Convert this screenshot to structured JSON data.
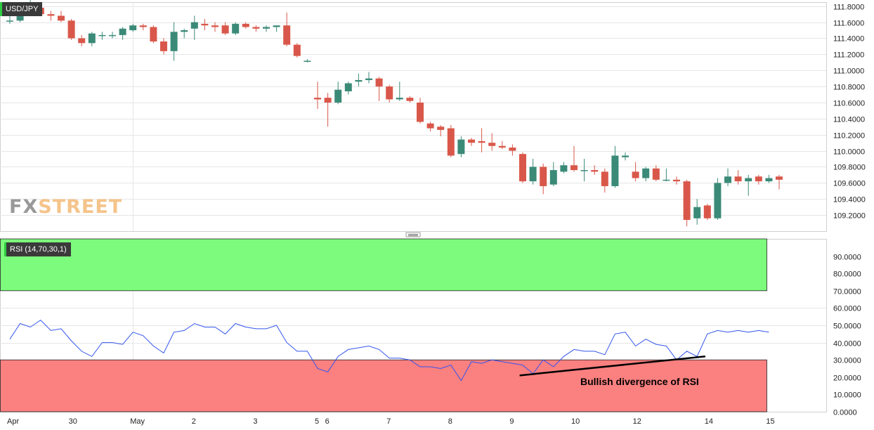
{
  "symbol": "USD/JPY",
  "indicator_label": "RSI (14,70,30,1)",
  "watermark": {
    "part1": "FX",
    "part2": "STREET"
  },
  "annotation": "Bullish divergence of RSI",
  "colors": {
    "up": "#3b8a78",
    "down": "#d9574a",
    "rsi_line": "#3355ee",
    "overbought_zone": "#7dfb7d",
    "oversold_zone": "#fb8080",
    "grid": "#e6e6e6",
    "watermark_fx": "#999999",
    "watermark_street": "#f5c48a",
    "badge_accent": "#2ecc40"
  },
  "chart_data": [
    {
      "type": "candlestick",
      "title": "USD/JPY",
      "y_ticks": [
        "111.8000",
        "111.6000",
        "111.4000",
        "111.2000",
        "111.0000",
        "110.8000",
        "110.6000",
        "110.4000",
        "110.2000",
        "110.0000",
        "109.8000",
        "109.6000",
        "109.4000",
        "109.2000"
      ],
      "ylim": [
        109.0,
        111.85
      ],
      "x_ticks": [
        {
          "label": "Apr",
          "index": 0
        },
        {
          "label": "30",
          "index": 6
        },
        {
          "label": "May",
          "index": 12
        },
        {
          "label": "2",
          "index": 18
        },
        {
          "label": "3",
          "index": 24
        },
        {
          "label": "5",
          "index": 30
        },
        {
          "label": "6",
          "index": 31
        },
        {
          "label": "7",
          "index": 37
        },
        {
          "label": "8",
          "index": 43
        },
        {
          "label": "9",
          "index": 49
        },
        {
          "label": "10",
          "index": 55
        },
        {
          "label": "12",
          "index": 61
        },
        {
          "label": "14",
          "index": 68
        },
        {
          "label": "15",
          "index": 74
        }
      ],
      "candles": [
        [
          111.62,
          111.7,
          111.58,
          111.62
        ],
        [
          111.62,
          111.82,
          111.6,
          111.76
        ],
        [
          111.76,
          111.88,
          111.7,
          111.78
        ],
        [
          111.78,
          111.85,
          111.68,
          111.7
        ],
        [
          111.7,
          111.74,
          111.62,
          111.68
        ],
        [
          111.68,
          111.74,
          111.6,
          111.62
        ],
        [
          111.62,
          111.64,
          111.38,
          111.4
        ],
        [
          111.4,
          111.44,
          111.3,
          111.34
        ],
        [
          111.34,
          111.48,
          111.3,
          111.46
        ],
        [
          111.44,
          111.48,
          111.38,
          111.44
        ],
        [
          111.44,
          111.48,
          111.4,
          111.44
        ],
        [
          111.44,
          111.54,
          111.38,
          111.52
        ],
        [
          111.5,
          111.58,
          111.48,
          111.56
        ],
        [
          111.56,
          111.58,
          111.5,
          111.54
        ],
        [
          111.54,
          111.56,
          111.34,
          111.36
        ],
        [
          111.36,
          111.4,
          111.2,
          111.24
        ],
        [
          111.24,
          111.6,
          111.12,
          111.48
        ],
        [
          111.48,
          111.52,
          111.4,
          111.5
        ],
        [
          111.52,
          111.68,
          111.38,
          111.6
        ],
        [
          111.58,
          111.64,
          111.5,
          111.56
        ],
        [
          111.56,
          111.6,
          111.48,
          111.54
        ],
        [
          111.56,
          111.6,
          111.44,
          111.46
        ],
        [
          111.46,
          111.6,
          111.44,
          111.58
        ],
        [
          111.58,
          111.6,
          111.52,
          111.54
        ],
        [
          111.54,
          111.56,
          111.48,
          111.52
        ],
        [
          111.52,
          111.56,
          111.48,
          111.54
        ],
        [
          111.54,
          111.56,
          111.48,
          111.56
        ],
        [
          111.56,
          111.72,
          111.3,
          111.32
        ],
        [
          111.32,
          111.34,
          111.16,
          111.18
        ],
        [
          111.12,
          111.14,
          111.1,
          111.12
        ],
        [
          110.66,
          110.86,
          110.52,
          110.64
        ],
        [
          110.66,
          110.72,
          110.3,
          110.6
        ],
        [
          110.6,
          110.86,
          110.58,
          110.76
        ],
        [
          110.74,
          110.86,
          110.7,
          110.84
        ],
        [
          110.86,
          110.96,
          110.8,
          110.88
        ],
        [
          110.88,
          110.98,
          110.84,
          110.9
        ],
        [
          110.9,
          110.92,
          110.62,
          110.8
        ],
        [
          110.8,
          110.82,
          110.6,
          110.64
        ],
        [
          110.64,
          110.86,
          110.62,
          110.66
        ],
        [
          110.66,
          110.68,
          110.6,
          110.62
        ],
        [
          110.6,
          110.66,
          110.34,
          110.36
        ],
        [
          110.34,
          110.36,
          110.24,
          110.28
        ],
        [
          110.3,
          110.32,
          110.18,
          110.26
        ],
        [
          110.28,
          110.32,
          109.92,
          109.94
        ],
        [
          109.96,
          110.18,
          109.92,
          110.14
        ],
        [
          110.14,
          110.16,
          110.06,
          110.1
        ],
        [
          110.12,
          110.28,
          109.98,
          110.1
        ],
        [
          110.1,
          110.22,
          110.0,
          110.06
        ],
        [
          110.06,
          110.12,
          110.02,
          110.04
        ],
        [
          110.04,
          110.08,
          109.94,
          110.0
        ],
        [
          109.96,
          109.98,
          109.6,
          109.62
        ],
        [
          109.62,
          109.9,
          109.58,
          109.8
        ],
        [
          109.8,
          109.84,
          109.46,
          109.56
        ],
        [
          109.58,
          109.86,
          109.56,
          109.76
        ],
        [
          109.74,
          109.86,
          109.72,
          109.82
        ],
        [
          109.82,
          110.06,
          109.74,
          109.76
        ],
        [
          109.76,
          109.9,
          109.62,
          109.76
        ],
        [
          109.76,
          109.82,
          109.7,
          109.74
        ],
        [
          109.74,
          109.78,
          109.48,
          109.56
        ],
        [
          109.56,
          110.06,
          109.54,
          109.94
        ],
        [
          109.92,
          109.98,
          109.88,
          109.94
        ],
        [
          109.74,
          109.86,
          109.62,
          109.66
        ],
        [
          109.66,
          109.8,
          109.62,
          109.78
        ],
        [
          109.78,
          109.82,
          109.62,
          109.64
        ],
        [
          109.64,
          109.78,
          109.62,
          109.64
        ],
        [
          109.64,
          109.68,
          109.58,
          109.62
        ],
        [
          109.62,
          109.64,
          109.06,
          109.14
        ],
        [
          109.16,
          109.4,
          109.08,
          109.3
        ],
        [
          109.32,
          109.34,
          109.14,
          109.16
        ],
        [
          109.16,
          109.66,
          109.14,
          109.6
        ],
        [
          109.6,
          109.78,
          109.56,
          109.68
        ],
        [
          109.68,
          109.76,
          109.58,
          109.62
        ],
        [
          109.62,
          109.7,
          109.44,
          109.66
        ],
        [
          109.68,
          109.7,
          109.58,
          109.62
        ],
        [
          109.62,
          109.7,
          109.6,
          109.66
        ],
        [
          109.68,
          109.7,
          109.52,
          109.64
        ]
      ]
    },
    {
      "type": "line",
      "title": "RSI (14,70,30,1)",
      "y_ticks": [
        "90.0000",
        "80.0000",
        "70.0000",
        "60.0000",
        "50.0000",
        "40.0000",
        "30.0000",
        "20.0000",
        "10.0000",
        "0.0000"
      ],
      "ylim": [
        0,
        100
      ],
      "bands": [
        {
          "from": 70,
          "to": 100
        },
        {
          "from": 0,
          "to": 30
        }
      ],
      "series": [
        {
          "values": [
            42,
            51,
            49,
            53,
            47,
            48,
            41,
            35,
            32,
            40,
            40,
            39,
            46,
            44,
            38,
            34,
            46,
            47,
            51,
            49,
            49,
            45,
            51,
            49,
            48,
            48,
            50,
            40,
            35,
            35,
            25,
            23,
            32,
            36,
            37,
            38,
            36,
            31,
            31,
            30,
            26,
            26,
            25,
            27,
            18,
            29,
            28,
            30,
            29,
            28,
            27,
            22,
            30,
            26,
            32,
            36,
            35,
            35,
            33,
            45,
            46,
            38,
            42,
            39,
            38,
            30,
            35,
            32,
            45,
            47,
            46,
            47,
            46,
            47,
            46
          ]
        }
      ],
      "trendline": {
        "from": {
          "index": 49.7,
          "value": 21
        },
        "to": {
          "index": 67.8,
          "value": 32
        }
      }
    }
  ]
}
